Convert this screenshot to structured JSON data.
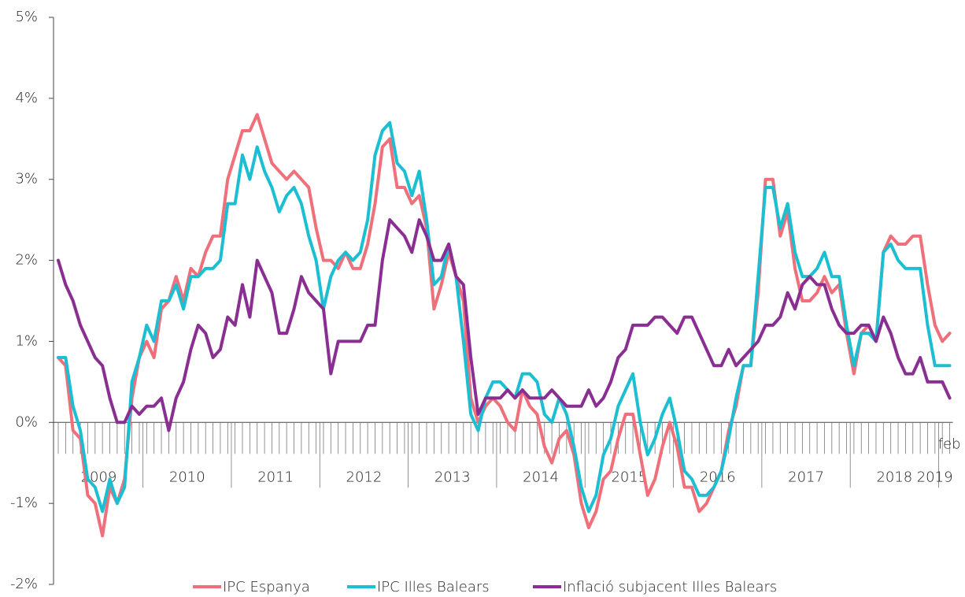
{
  "chart_data": {
    "type": "line",
    "categories": [
      null,
      null,
      null,
      null,
      null,
      null,
      "2009",
      null,
      null,
      null,
      null,
      null,
      null,
      null,
      null,
      null,
      null,
      null,
      "2010",
      null,
      null,
      null,
      null,
      null,
      null,
      null,
      null,
      null,
      null,
      null,
      "2011",
      null,
      null,
      null,
      null,
      null,
      null,
      null,
      null,
      null,
      null,
      null,
      "2012",
      null,
      null,
      null,
      null,
      null,
      null,
      null,
      null,
      null,
      null,
      null,
      "2013",
      null,
      null,
      null,
      null,
      null,
      null,
      null,
      null,
      null,
      null,
      null,
      "2014",
      null,
      null,
      null,
      null,
      null,
      null,
      null,
      null,
      null,
      null,
      null,
      "2015",
      null,
      null,
      null,
      null,
      null,
      null,
      null,
      null,
      null,
      null,
      null,
      "2016",
      null,
      null,
      null,
      null,
      null,
      null,
      null,
      null,
      null,
      null,
      null,
      "2017",
      null,
      null,
      null,
      null,
      null,
      null,
      null,
      null,
      null,
      null,
      null,
      "2018",
      null,
      null,
      null,
      null,
      null,
      null,
      "2019"
    ],
    "annotations": [
      "feb"
    ],
    "series": [
      {
        "name": "IPC Espanya",
        "color": "#ef6f7a",
        "values": [
          0.8,
          0.7,
          -0.1,
          -0.2,
          -0.9,
          -1.0,
          -1.4,
          -0.8,
          -1.0,
          -0.7,
          0.3,
          0.8,
          1.0,
          0.8,
          1.4,
          1.5,
          1.8,
          1.5,
          1.9,
          1.8,
          2.1,
          2.3,
          2.3,
          3.0,
          3.3,
          3.6,
          3.6,
          3.8,
          3.5,
          3.2,
          3.1,
          3.0,
          3.1,
          3.0,
          2.9,
          2.4,
          2.0,
          2.0,
          1.9,
          2.1,
          1.9,
          1.9,
          2.2,
          2.7,
          3.4,
          3.5,
          2.9,
          2.9,
          2.7,
          2.8,
          2.4,
          1.4,
          1.7,
          2.1,
          1.8,
          1.5,
          0.3,
          0.0,
          0.2,
          0.3,
          0.2,
          0.0,
          -0.1,
          0.4,
          0.2,
          0.1,
          -0.3,
          -0.5,
          -0.2,
          -0.1,
          -0.4,
          -1.0,
          -1.3,
          -1.1,
          -0.7,
          -0.6,
          -0.2,
          0.1,
          0.1,
          -0.4,
          -0.9,
          -0.7,
          -0.3,
          0.0,
          -0.3,
          -0.8,
          -0.8,
          -1.1,
          -1.0,
          -0.8,
          -0.6,
          -0.1,
          0.2,
          0.7,
          0.7,
          1.6,
          3.0,
          3.0,
          2.3,
          2.6,
          1.9,
          1.5,
          1.5,
          1.6,
          1.8,
          1.6,
          1.7,
          1.1,
          0.6,
          1.1,
          1.2,
          1.0,
          2.1,
          2.3,
          2.2,
          2.2,
          2.3,
          2.3,
          1.7,
          1.2,
          1.0,
          1.1
        ]
      },
      {
        "name": "IPC Illes Balears",
        "color": "#1bbfd1",
        "values": [
          0.8,
          0.8,
          0.2,
          -0.1,
          -0.7,
          -0.8,
          -1.1,
          -0.7,
          -1.0,
          -0.8,
          0.5,
          0.8,
          1.2,
          1.0,
          1.5,
          1.5,
          1.7,
          1.4,
          1.8,
          1.8,
          1.9,
          1.9,
          2.0,
          2.7,
          2.7,
          3.3,
          3.0,
          3.4,
          3.1,
          2.9,
          2.6,
          2.8,
          2.9,
          2.7,
          2.3,
          2.0,
          1.4,
          1.8,
          2.0,
          2.1,
          2.0,
          2.1,
          2.5,
          3.3,
          3.6,
          3.7,
          3.2,
          3.1,
          2.8,
          3.1,
          2.5,
          1.7,
          1.8,
          2.2,
          1.8,
          1.0,
          0.1,
          -0.1,
          0.3,
          0.5,
          0.5,
          0.4,
          0.3,
          0.6,
          0.6,
          0.5,
          0.1,
          0.0,
          0.3,
          0.1,
          -0.3,
          -0.8,
          -1.1,
          -0.9,
          -0.4,
          -0.2,
          0.2,
          0.4,
          0.6,
          0.0,
          -0.4,
          -0.2,
          0.1,
          0.3,
          -0.1,
          -0.6,
          -0.7,
          -0.9,
          -0.9,
          -0.8,
          -0.6,
          -0.2,
          0.3,
          0.7,
          0.7,
          1.8,
          2.9,
          2.9,
          2.4,
          2.7,
          2.1,
          1.8,
          1.8,
          1.9,
          2.1,
          1.8,
          1.8,
          1.2,
          0.7,
          1.1,
          1.1,
          1.0,
          2.1,
          2.2,
          2.0,
          1.9,
          1.9,
          1.9,
          1.2,
          0.7,
          0.7,
          0.7
        ]
      },
      {
        "name": "Inflació subjacent Illes Balears",
        "color": "#8a2f92",
        "values": [
          2.0,
          1.7,
          1.5,
          1.2,
          1.0,
          0.8,
          0.7,
          0.3,
          0.0,
          0.0,
          0.2,
          0.1,
          0.2,
          0.2,
          0.3,
          -0.1,
          0.3,
          0.5,
          0.9,
          1.2,
          1.1,
          0.8,
          0.9,
          1.3,
          1.2,
          1.7,
          1.3,
          2.0,
          1.8,
          1.6,
          1.1,
          1.1,
          1.4,
          1.8,
          1.6,
          1.5,
          1.4,
          0.6,
          1.0,
          1.0,
          1.0,
          1.0,
          1.2,
          1.2,
          2.0,
          2.5,
          2.4,
          2.3,
          2.1,
          2.5,
          2.3,
          2.0,
          2.0,
          2.2,
          1.8,
          1.7,
          0.8,
          0.1,
          0.3,
          0.3,
          0.3,
          0.4,
          0.3,
          0.4,
          0.3,
          0.3,
          0.3,
          0.4,
          0.3,
          0.2,
          0.2,
          0.2,
          0.4,
          0.2,
          0.3,
          0.5,
          0.8,
          0.9,
          1.2,
          1.2,
          1.2,
          1.3,
          1.3,
          1.2,
          1.1,
          1.3,
          1.3,
          1.1,
          0.9,
          0.7,
          0.7,
          0.9,
          0.7,
          0.8,
          0.9,
          1.0,
          1.2,
          1.2,
          1.3,
          1.6,
          1.4,
          1.7,
          1.8,
          1.7,
          1.7,
          1.4,
          1.2,
          1.1,
          1.1,
          1.2,
          1.2,
          1.0,
          1.3,
          1.1,
          0.8,
          0.6,
          0.6,
          0.8,
          0.5,
          0.5,
          0.5,
          0.3
        ]
      }
    ],
    "ylim": [
      -2,
      5
    ],
    "yticks": [
      {
        "value": -2,
        "label": "-2%"
      },
      {
        "value": -1,
        "label": "-1%"
      },
      {
        "value": 0,
        "label": "0%"
      },
      {
        "value": 1,
        "label": "1%"
      },
      {
        "value": 2,
        "label": "2%"
      },
      {
        "value": 3,
        "label": "3%"
      },
      {
        "value": 4,
        "label": "4%"
      },
      {
        "value": 5,
        "label": "5%"
      }
    ],
    "legend": "bottom"
  }
}
